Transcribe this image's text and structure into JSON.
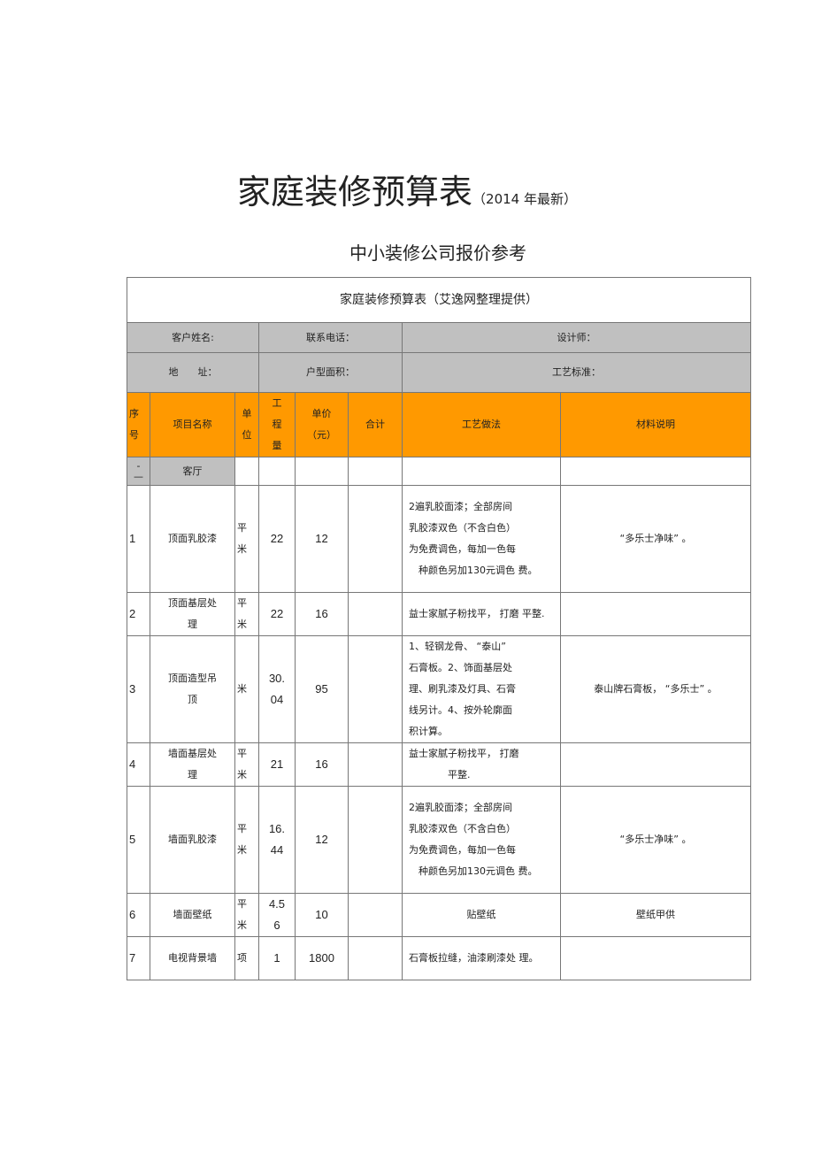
{
  "document": {
    "title": "家庭装修预算表",
    "title_suffix": "（2014 年最新）",
    "subtitle": "中小装修公司报价参考"
  },
  "table": {
    "caption": "家庭装修预算表（艾逸网整理提供）",
    "info": {
      "customer_name": "客户姓名:",
      "phone": "联系电话：",
      "designer": "设计师：",
      "address": "地　　址：",
      "area": "户型面积：",
      "standard": "工艺标准："
    },
    "headers": [
      "序\n号",
      "项目名称",
      "单\n位",
      "工\n程\n量",
      "单价\n（元）",
      "合计",
      "工艺做法",
      "材料说明"
    ],
    "section": {
      "index": "-\n—",
      "name": "客厅"
    },
    "rows": [
      {
        "no": "1",
        "name": "顶面乳胶漆",
        "unit": "平\n米",
        "qty": "22",
        "price": "12",
        "total": "",
        "craft": "2遍乳胶面漆；全部房间\n乳胶漆双色（不含白色）\n为免费调色，每加一色每\n　种颜色另加130元调色 费。",
        "material": "“多乐士净味” 。"
      },
      {
        "no": "2",
        "name": "顶面基层处\n理",
        "unit": "平\n米",
        "qty": "22",
        "price": "16",
        "total": "",
        "craft": "益士家腻子粉找平， 打磨 平整.",
        "material": ""
      },
      {
        "no": "3",
        "name": "顶面造型吊\n顶",
        "unit": "米",
        "qty": "30.\n04",
        "price": "95",
        "total": "",
        "craft": "1、轻钢龙骨、 “泰山”\n石膏板。2、饰面基层处\n理、刷乳漆及灯具、石膏\n线另计。4、按外轮廓面\n积计算。",
        "material": "泰山牌石膏板， “多乐士” 。"
      },
      {
        "no": "4",
        "name": "墙面基层处\n理",
        "unit": "平\n米",
        "qty": "21",
        "price": "16",
        "total": "",
        "craft": "益士家腻子粉找平， 打磨\n　　　　平整.",
        "material": ""
      },
      {
        "no": "5",
        "name": "墙面乳胶漆",
        "unit": "平\n米",
        "qty": "16.\n44",
        "price": "12",
        "total": "",
        "craft": "2遍乳胶面漆；全部房间\n乳胶漆双色（不含白色）\n为免费调色，每加一色每\n　种颜色另加130元调色 费。",
        "material": "“多乐士净味” 。"
      },
      {
        "no": "6",
        "name": "墙面壁纸",
        "unit": "平\n米",
        "qty": "4.5\n6",
        "price": "10",
        "total": "",
        "craft": "贴壁纸",
        "material": "壁纸甲供"
      },
      {
        "no": "7",
        "name": "电视背景墙",
        "unit": "项",
        "qty": "1",
        "price": "1800",
        "total": "",
        "craft": "石膏板拉缝，油漆刷漆处 理。",
        "material": ""
      }
    ]
  },
  "colors": {
    "header_fill": "#ff9900",
    "info_fill": "#c0c0c0",
    "border": "#777777"
  }
}
